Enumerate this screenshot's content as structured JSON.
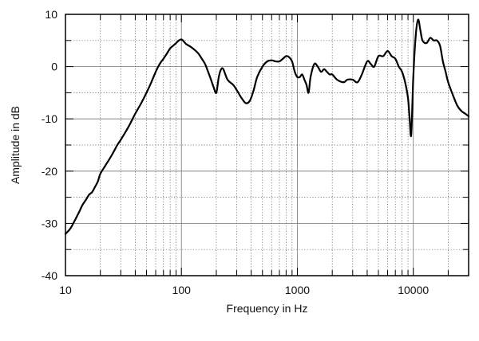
{
  "chart_data": {
    "type": "line",
    "title": "",
    "xlabel": "Frequency in Hz",
    "ylabel": "Amplitude in dB",
    "x_scale": "log",
    "xlim": [
      10,
      30000
    ],
    "ylim": [
      -40,
      10
    ],
    "x_ticks": [
      10,
      100,
      1000,
      10000
    ],
    "x_tick_labels": [
      "10",
      "100",
      "1000",
      "10000"
    ],
    "y_ticks": [
      10,
      0,
      -10,
      -20,
      -30,
      -40
    ],
    "y_tick_labels": [
      "10",
      "0",
      "-10",
      "-20",
      "-30",
      "-40"
    ],
    "grid": true,
    "legend": "none",
    "line_color": "#000000",
    "series": [
      {
        "x": [
          10,
          11,
          12,
          13,
          14,
          15,
          16,
          17,
          18,
          19,
          20,
          22,
          25,
          28,
          30,
          35,
          40,
          45,
          50,
          55,
          60,
          65,
          70,
          75,
          80,
          85,
          90,
          95,
          100,
          105,
          110,
          120,
          130,
          140,
          150,
          160,
          170,
          180,
          190,
          200,
          210,
          220,
          230,
          250,
          280,
          300,
          330,
          360,
          390,
          420,
          450,
          500,
          550,
          600,
          650,
          700,
          750,
          800,
          850,
          900,
          950,
          1000,
          1050,
          1100,
          1150,
          1200,
          1250,
          1300,
          1400,
          1500,
          1600,
          1700,
          1800,
          1900,
          2000,
          2200,
          2500,
          2700,
          3000,
          3300,
          3600,
          4000,
          4300,
          4600,
          5000,
          5500,
          6000,
          6500,
          7000,
          7500,
          8000,
          8500,
          9000,
          9300,
          9600,
          10000,
          10500,
          11000,
          11500,
          12000,
          13000,
          14000,
          15000,
          16000,
          17000,
          18000,
          19000,
          20000,
          22000,
          24000,
          26000,
          28000,
          30000
        ],
        "y": [
          -32,
          -31,
          -29.5,
          -28,
          -26.5,
          -25.5,
          -24.5,
          -24,
          -23,
          -22,
          -20.5,
          -19,
          -17,
          -15,
          -14,
          -11.5,
          -9,
          -7,
          -5,
          -3,
          -1,
          0.5,
          1.5,
          2.5,
          3.5,
          4,
          4.5,
          5,
          5.2,
          4.8,
          4.3,
          3.8,
          3.2,
          2.5,
          1.5,
          0.5,
          -1,
          -2.5,
          -4,
          -5,
          -2,
          -0.5,
          -0.5,
          -2.5,
          -3.5,
          -4.5,
          -6,
          -7,
          -6.5,
          -4.5,
          -2,
          0,
          1,
          1.2,
          1,
          1,
          1.5,
          2,
          1.8,
          1,
          -1,
          -2,
          -2,
          -1.5,
          -2.5,
          -3.5,
          -5,
          -2,
          0.5,
          0,
          -1,
          -0.5,
          -1,
          -1.5,
          -1.5,
          -2.5,
          -3,
          -2.5,
          -2.5,
          -3,
          -1.5,
          1,
          0.5,
          0,
          2,
          2,
          3,
          2,
          1.5,
          0,
          -1,
          -3,
          -6,
          -10,
          -13,
          -2,
          6,
          9,
          7,
          5,
          4.5,
          5.5,
          5,
          5,
          4,
          1,
          -1,
          -3,
          -5.5,
          -7.5,
          -8.5,
          -9,
          -9.5
        ]
      }
    ]
  }
}
